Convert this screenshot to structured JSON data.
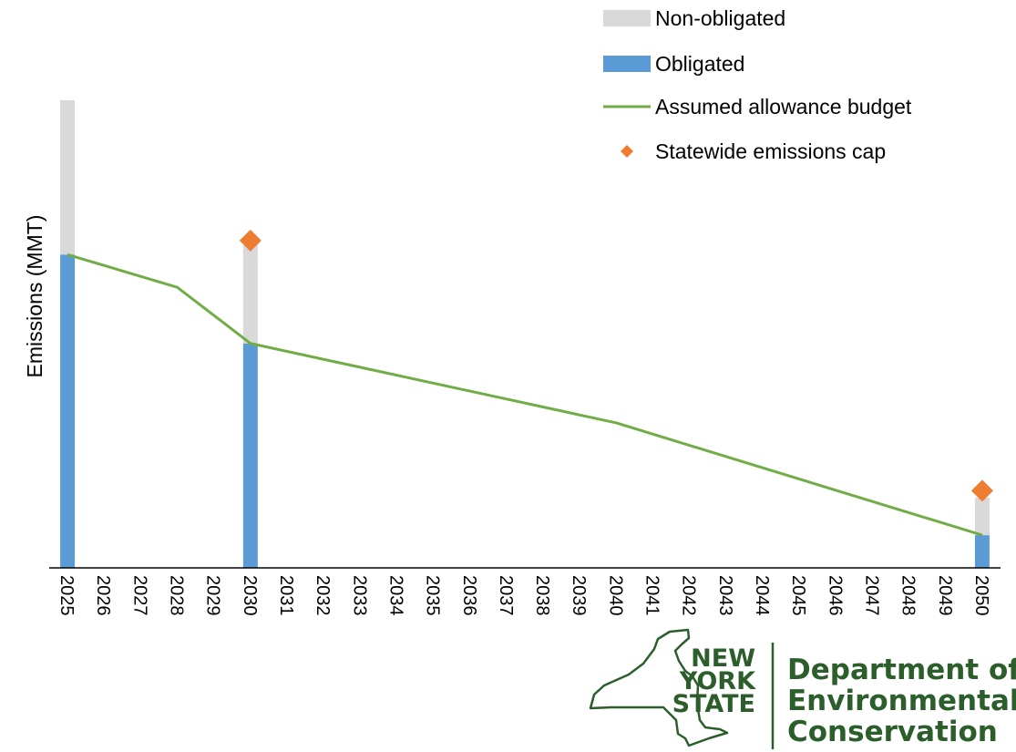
{
  "chart_data": {
    "type": "bar",
    "ylabel": "Emissions (MMT)",
    "xlabel": "",
    "ylim": [
      0,
      100
    ],
    "x": [
      "2025",
      "2026",
      "2027",
      "2028",
      "2029",
      "2030",
      "2031",
      "2032",
      "2033",
      "2034",
      "2035",
      "2036",
      "2037",
      "2038",
      "2039",
      "2040",
      "2041",
      "2042",
      "2043",
      "2044",
      "2045",
      "2046",
      "2047",
      "2048",
      "2049",
      "2050"
    ],
    "series": [
      {
        "name": "Non-obligated",
        "type": "bar",
        "stacked": true,
        "color": "#d9d9d9",
        "points": [
          {
            "x": "2025",
            "y": 33
          },
          {
            "x": "2030",
            "y": 21
          },
          {
            "x": "2050",
            "y": 8
          }
        ]
      },
      {
        "name": "Obligated",
        "type": "bar",
        "stacked": true,
        "color": "#5b9bd5",
        "points": [
          {
            "x": "2025",
            "y": 67
          },
          {
            "x": "2030",
            "y": 48
          },
          {
            "x": "2050",
            "y": 7
          }
        ]
      },
      {
        "name": "Assumed allowance budget",
        "type": "line",
        "color": "#70ad47",
        "points": [
          {
            "x": "2025",
            "y": 67
          },
          {
            "x": "2028",
            "y": 60
          },
          {
            "x": "2030",
            "y": 48
          },
          {
            "x": "2040",
            "y": 31
          },
          {
            "x": "2050",
            "y": 7
          }
        ]
      },
      {
        "name": "Statewide emissions cap",
        "type": "scatter",
        "marker": "diamond",
        "color": "#ed7d31",
        "points": [
          {
            "x": "2030",
            "y": 70
          },
          {
            "x": "2050",
            "y": 16.5
          }
        ]
      }
    ],
    "legend": "top-right",
    "grid": false
  },
  "logo": {
    "state_lines": [
      "NEW",
      "YORK",
      "STATE"
    ],
    "dept_lines": [
      "Department of",
      "Environmental",
      "Conservation"
    ]
  }
}
